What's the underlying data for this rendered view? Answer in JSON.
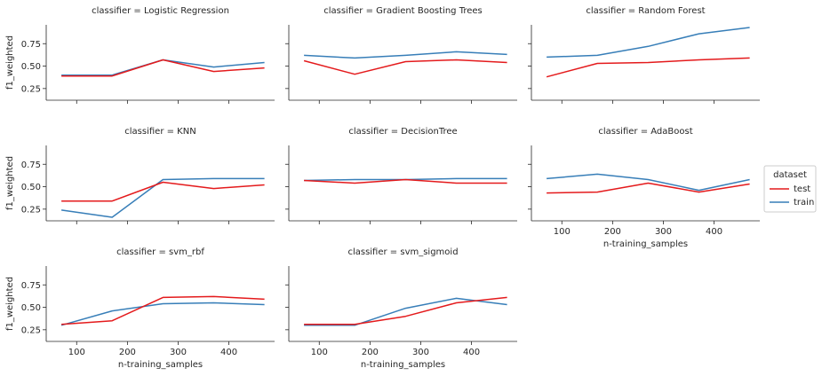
{
  "chart_data": {
    "type": "line",
    "x_values": [
      70,
      170,
      270,
      370,
      470
    ],
    "xlabel": "n-training_samples",
    "ylabel": "f1_weighted",
    "xlim": [
      40,
      490
    ],
    "ylim": [
      0.12,
      0.96
    ],
    "xticks": [
      100,
      200,
      300,
      400
    ],
    "yticks": [
      0.25,
      0.5,
      0.75
    ],
    "xtick_labels": [
      "100",
      "200",
      "300",
      "400"
    ],
    "ytick_labels": [
      "0.25",
      "0.50",
      "0.75"
    ],
    "grid": false,
    "legend": {
      "title": "dataset",
      "placement": "right",
      "entries": [
        {
          "name": "test",
          "color": "#e41a1c"
        },
        {
          "name": "train",
          "color": "#377eb8"
        }
      ]
    },
    "facets": [
      {
        "title": "classifier = Logistic Regression",
        "series": [
          {
            "name": "test",
            "values": [
              0.39,
              0.39,
              0.57,
              0.44,
              0.48
            ]
          },
          {
            "name": "train",
            "values": [
              0.4,
              0.4,
              0.57,
              0.49,
              0.54
            ]
          }
        ]
      },
      {
        "title": "classifier = Gradient Boosting Trees",
        "series": [
          {
            "name": "test",
            "values": [
              0.56,
              0.41,
              0.55,
              0.57,
              0.54
            ]
          },
          {
            "name": "train",
            "values": [
              0.62,
              0.59,
              0.62,
              0.66,
              0.63
            ]
          }
        ]
      },
      {
        "title": "classifier = Random Forest",
        "series": [
          {
            "name": "test",
            "values": [
              0.38,
              0.53,
              0.54,
              0.57,
              0.59
            ]
          },
          {
            "name": "train",
            "values": [
              0.6,
              0.62,
              0.72,
              0.86,
              0.93
            ]
          }
        ]
      },
      {
        "title": "classifier = KNN",
        "series": [
          {
            "name": "test",
            "values": [
              0.34,
              0.34,
              0.55,
              0.48,
              0.52
            ]
          },
          {
            "name": "train",
            "values": [
              0.24,
              0.16,
              0.58,
              0.59,
              0.59
            ]
          }
        ]
      },
      {
        "title": "classifier = DecisionTree",
        "series": [
          {
            "name": "test",
            "values": [
              0.57,
              0.54,
              0.58,
              0.54,
              0.54
            ]
          },
          {
            "name": "train",
            "values": [
              0.57,
              0.58,
              0.58,
              0.59,
              0.59
            ]
          }
        ]
      },
      {
        "title": "classifier = AdaBoost",
        "series": [
          {
            "name": "test",
            "values": [
              0.43,
              0.44,
              0.54,
              0.44,
              0.53
            ]
          },
          {
            "name": "train",
            "values": [
              0.59,
              0.64,
              0.58,
              0.46,
              0.58
            ]
          }
        ]
      },
      {
        "title": "classifier = svm_rbf",
        "series": [
          {
            "name": "test",
            "values": [
              0.31,
              0.35,
              0.61,
              0.62,
              0.59
            ]
          },
          {
            "name": "train",
            "values": [
              0.3,
              0.46,
              0.54,
              0.55,
              0.53
            ]
          }
        ]
      },
      {
        "title": "classifier = svm_sigmoid",
        "series": [
          {
            "name": "test",
            "values": [
              0.31,
              0.31,
              0.4,
              0.55,
              0.61
            ]
          },
          {
            "name": "train",
            "values": [
              0.3,
              0.3,
              0.49,
              0.6,
              0.53
            ]
          }
        ]
      }
    ]
  }
}
